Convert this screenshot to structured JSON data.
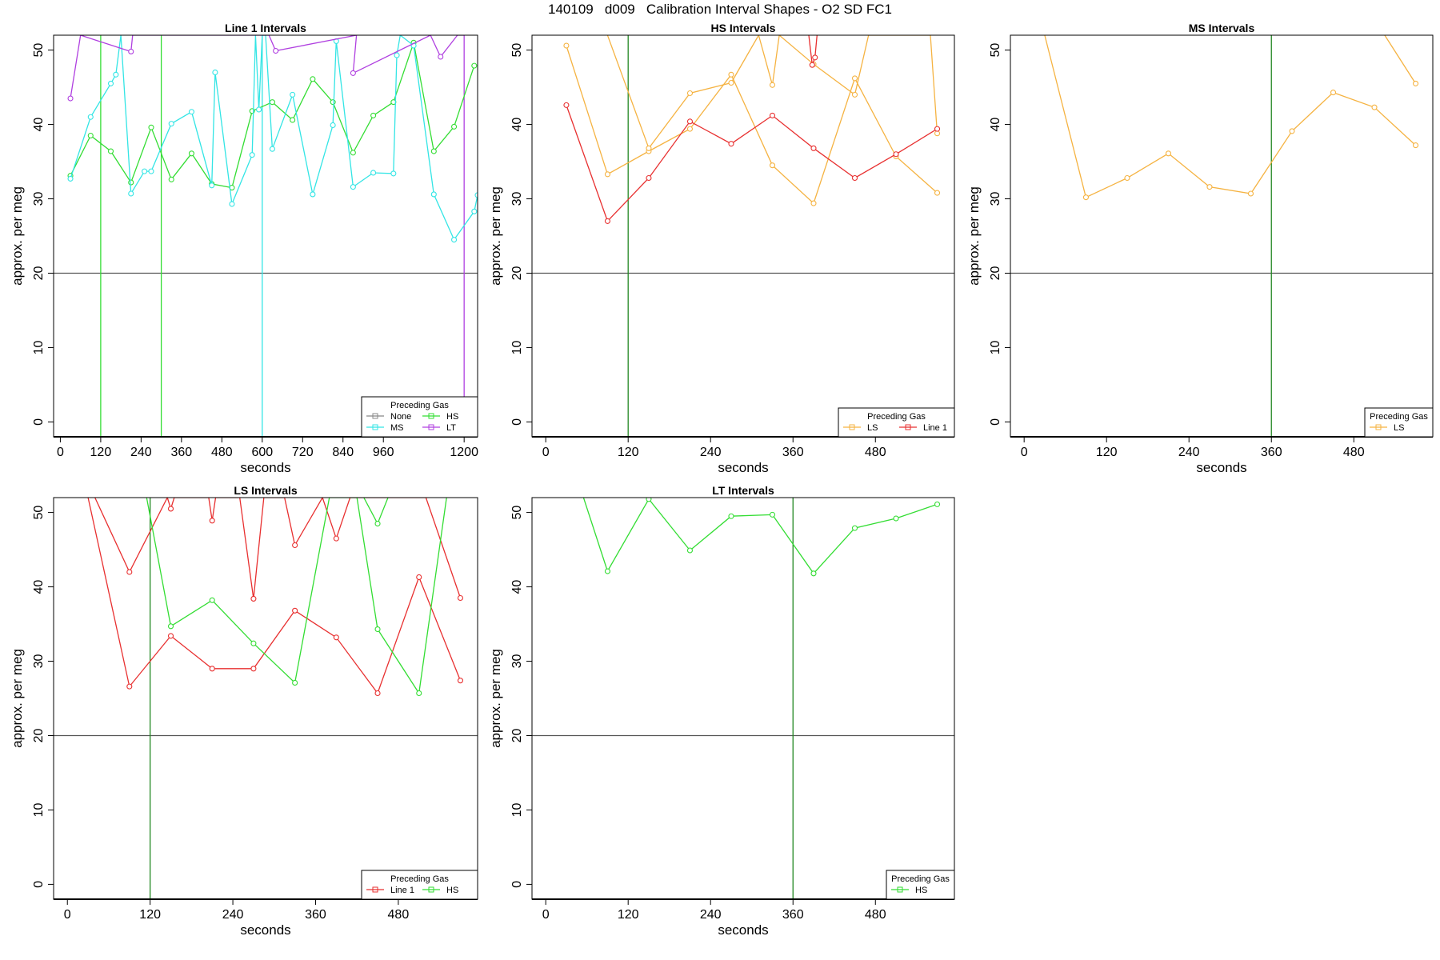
{
  "figure": {
    "title": "140109   d009   Calibration Interval Shapes - O2 SD FC1",
    "colors": {
      "None": "#888888",
      "HS": "#33dd33",
      "MS": "#33e5e5",
      "LT": "#b040e0",
      "LS": "#f5b342",
      "Line 1": "#e83030",
      "cal_line": "#228822",
      "ref_line": "#555555"
    }
  },
  "chart_data": [
    {
      "type": "line",
      "title": "Line 1 Intervals",
      "xlabel": "seconds",
      "ylabel": "approx. per meg",
      "xlim": [
        -20,
        1240
      ],
      "ylim": [
        -2,
        52
      ],
      "xticks": [
        0,
        120,
        240,
        360,
        480,
        600,
        720,
        840,
        960,
        1200
      ],
      "xtick_labels": [
        "0",
        "120",
        "240",
        "360",
        "480",
        "600",
        "720",
        "840",
        "960",
        "1200"
      ],
      "yticks": [
        0,
        10,
        20,
        30,
        40,
        50
      ],
      "ytick_labels": [
        "0",
        "10",
        "20",
        "30",
        "40",
        "50"
      ],
      "reference_line": 20,
      "vertical_lines": [
        {
          "x": 120,
          "gas": "HS"
        },
        {
          "x": 300,
          "gas": "HS"
        },
        {
          "x": 600,
          "gas": "MS"
        },
        {
          "x": 1200,
          "gas": "LT"
        }
      ],
      "legend": {
        "title": "Preceding Gas",
        "position": "bottom-right",
        "columns": 2,
        "entries": [
          "None",
          "HS",
          "MS",
          "LT"
        ]
      },
      "series": [
        {
          "name": "HS",
          "x": [
            30,
            90,
            150,
            210,
            270,
            330,
            390,
            450,
            510,
            570,
            630,
            690,
            750,
            810,
            870,
            930,
            990,
            1050,
            1110,
            1170,
            1230
          ],
          "y": [
            33.1,
            38.5,
            36.4,
            32.2,
            39.6,
            32.6,
            36.1,
            32.0,
            31.5,
            41.8,
            43.0,
            40.6,
            46.1,
            43.0,
            36.2,
            41.2,
            43.0,
            51.0,
            36.4,
            39.7,
            47.9
          ]
        },
        {
          "name": "MS",
          "x": [
            30,
            90,
            150,
            165,
            180,
            210,
            250,
            270,
            330,
            390,
            450,
            460,
            510,
            570,
            580,
            590,
            600,
            610,
            630,
            690,
            750,
            810,
            820,
            870,
            930,
            990,
            1000,
            1010,
            1050,
            1110,
            1170,
            1230,
            1240
          ],
          "y": [
            32.7,
            41.0,
            45.5,
            46.7,
            52.0,
            30.7,
            33.7,
            33.7,
            40.1,
            41.7,
            31.8,
            47.0,
            29.3,
            35.9,
            52.0,
            42.0,
            52.0,
            52.0,
            36.7,
            44.0,
            30.6,
            39.9,
            51.2,
            31.6,
            33.5,
            33.4,
            49.3,
            52.0,
            50.6,
            30.6,
            24.5,
            28.3,
            30.5
          ]
        },
        {
          "name": "LT",
          "x": [
            30,
            60,
            210,
            215,
            620,
            640,
            880,
            870,
            1100,
            1130,
            1180,
            1200
          ],
          "y": [
            43.5,
            52.0,
            49.8,
            52.0,
            52.0,
            49.9,
            52.0,
            46.9,
            52.0,
            49.1,
            52.0,
            52.0
          ]
        }
      ]
    },
    {
      "type": "line",
      "title": "HS Intervals",
      "xlabel": "seconds",
      "ylabel": "approx. per meg",
      "xlim": [
        -20,
        595
      ],
      "ylim": [
        -2,
        52
      ],
      "xticks": [
        0,
        120,
        240,
        360,
        480
      ],
      "xtick_labels": [
        "0",
        "120",
        "240",
        "360",
        "480"
      ],
      "yticks": [
        0,
        10,
        20,
        30,
        40,
        50
      ],
      "ytick_labels": [
        "0",
        "10",
        "20",
        "30",
        "40",
        "50"
      ],
      "reference_line": 20,
      "vertical_lines": [
        {
          "x": 120,
          "gas": "cal"
        }
      ],
      "legend": {
        "title": "Preceding Gas",
        "position": "bottom-right",
        "columns": 2,
        "entries": [
          "LS",
          "Line 1"
        ]
      },
      "series": [
        {
          "name": "LS",
          "x": [
            30,
            90,
            150,
            210,
            270,
            330,
            390,
            450,
            510,
            570
          ],
          "y": [
            50.6,
            33.3,
            36.4,
            39.4,
            46.7,
            34.5,
            29.4,
            46.2,
            35.7,
            30.8
          ]
        },
        {
          "name": "LS",
          "x": [
            90,
            150,
            210,
            270,
            310,
            330,
            340,
            390,
            450,
            470,
            510,
            560,
            570
          ],
          "y": [
            52.0,
            36.8,
            44.2,
            45.6,
            52.0,
            45.3,
            52.0,
            48.1,
            44.0,
            52.0,
            52.0,
            52.0,
            38.8
          ]
        },
        {
          "name": "Line 1",
          "x": [
            30,
            90,
            150,
            210,
            270,
            330,
            390,
            450,
            510,
            570
          ],
          "y": [
            42.6,
            27.0,
            32.8,
            40.4,
            37.4,
            41.2,
            36.8,
            32.8,
            36.0,
            39.4
          ]
        },
        {
          "name": "Line 1",
          "x": [
            383,
            388,
            392,
            395
          ],
          "y": [
            52.0,
            48.0,
            49.0,
            52.0
          ]
        }
      ]
    },
    {
      "type": "line",
      "title": "MS Intervals",
      "xlabel": "seconds",
      "ylabel": "approx. per meg",
      "xlim": [
        -20,
        595
      ],
      "ylim": [
        -2,
        52
      ],
      "xticks": [
        0,
        120,
        240,
        360,
        480
      ],
      "xtick_labels": [
        "0",
        "120",
        "240",
        "360",
        "480"
      ],
      "yticks": [
        0,
        10,
        20,
        30,
        40,
        50
      ],
      "ytick_labels": [
        "0",
        "10",
        "20",
        "30",
        "40",
        "50"
      ],
      "reference_line": 20,
      "vertical_lines": [
        {
          "x": 360,
          "gas": "cal"
        }
      ],
      "legend": {
        "title": "Preceding Gas",
        "position": "bottom-right",
        "columns": 1,
        "entries": [
          "LS"
        ]
      },
      "series": [
        {
          "name": "LS",
          "x": [
            30,
            90,
            150,
            210,
            270,
            330,
            390,
            450,
            510,
            570
          ],
          "y": [
            52.0,
            30.2,
            32.8,
            36.1,
            31.6,
            30.7,
            39.1,
            44.3,
            42.3,
            37.2
          ]
        },
        {
          "name": "LS",
          "x": [
            525,
            570
          ],
          "y": [
            52.0,
            45.5
          ]
        }
      ]
    },
    {
      "type": "line",
      "title": "LS Intervals",
      "xlabel": "seconds",
      "ylabel": "approx. per meg",
      "xlim": [
        -20,
        595
      ],
      "ylim": [
        -2,
        52
      ],
      "xticks": [
        0,
        120,
        240,
        360,
        480
      ],
      "xtick_labels": [
        "0",
        "120",
        "240",
        "360",
        "480"
      ],
      "yticks": [
        0,
        10,
        20,
        30,
        40,
        50
      ],
      "ytick_labels": [
        "0",
        "10",
        "20",
        "30",
        "40",
        "50"
      ],
      "reference_line": 20,
      "vertical_lines": [
        {
          "x": 120,
          "gas": "cal"
        }
      ],
      "legend": {
        "title": "Preceding Gas",
        "position": "bottom-right",
        "columns": 2,
        "entries": [
          "Line 1",
          "HS"
        ]
      },
      "series": [
        {
          "name": "Line 1",
          "x": [
            30,
            90,
            150,
            210,
            270,
            330,
            390,
            450,
            510,
            570
          ],
          "y": [
            52.0,
            26.6,
            33.4,
            29.0,
            29.0,
            36.8,
            33.2,
            25.7,
            41.3,
            27.4
          ]
        },
        {
          "name": "Line 1",
          "x": [
            40,
            90,
            145,
            150,
            155,
            205,
            210,
            215,
            250,
            270,
            285,
            315,
            330,
            370,
            390,
            410,
            520,
            570
          ],
          "y": [
            52.0,
            42.0,
            52.0,
            50.5,
            52.0,
            52.0,
            48.9,
            52.0,
            52.0,
            38.4,
            52.0,
            52.0,
            45.6,
            52.0,
            46.5,
            52.0,
            52.0,
            38.5
          ]
        },
        {
          "name": "HS",
          "x": [
            115,
            150,
            210,
            270,
            330,
            380,
            390,
            420,
            450,
            510,
            550
          ],
          "y": [
            52.0,
            34.7,
            38.2,
            32.4,
            27.1,
            52.0,
            52.0,
            52.0,
            34.3,
            25.7,
            52.0
          ]
        },
        {
          "name": "HS",
          "x": [
            430,
            450,
            465
          ],
          "y": [
            52.0,
            48.5,
            52.0
          ]
        }
      ]
    },
    {
      "type": "line",
      "title": "LT Intervals",
      "xlabel": "seconds",
      "ylabel": "approx. per meg",
      "xlim": [
        -20,
        595
      ],
      "ylim": [
        -2,
        52
      ],
      "xticks": [
        0,
        120,
        240,
        360,
        480
      ],
      "xtick_labels": [
        "0",
        "120",
        "240",
        "360",
        "480"
      ],
      "yticks": [
        0,
        10,
        20,
        30,
        40,
        50
      ],
      "ytick_labels": [
        "0",
        "10",
        "20",
        "30",
        "40",
        "50"
      ],
      "reference_line": 20,
      "vertical_lines": [
        {
          "x": 360,
          "gas": "cal"
        }
      ],
      "legend": {
        "title": "Preceding Gas",
        "position": "bottom-right",
        "columns": 1,
        "entries": [
          "HS"
        ]
      },
      "series": [
        {
          "name": "HS",
          "x": [
            55,
            90,
            150,
            210,
            270,
            330,
            390,
            450,
            510,
            570
          ],
          "y": [
            52.0,
            42.1,
            51.8,
            44.9,
            49.5,
            49.7,
            41.8,
            47.9,
            49.2,
            51.1
          ]
        }
      ]
    }
  ]
}
